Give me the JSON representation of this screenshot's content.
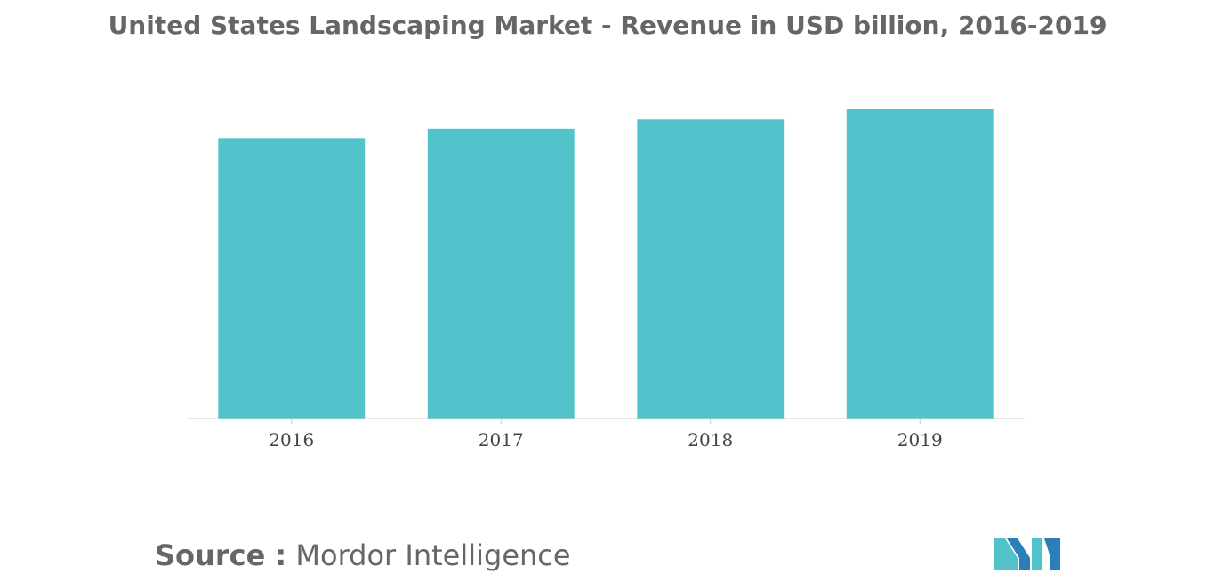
{
  "chart_data": {
    "type": "bar",
    "title": "United States Landscaping Market - Revenue in USD billion, 2016-2019",
    "categories": [
      "2016",
      "2017",
      "2018",
      "2019"
    ],
    "values": [
      81.0,
      83.7,
      86.4,
      89.3
    ],
    "ylim": [
      0,
      89.3
    ],
    "xlabel": "",
    "ylabel": "",
    "grid": false,
    "bar_color": "#52c3ca",
    "axis_color": "#cccccc"
  },
  "source": {
    "label": "Source :",
    "text": "Mordor Intelligence"
  },
  "logo": {
    "icon": "mordor-intelligence-logo",
    "colors": [
      "#2a7fb8",
      "#52c3ca"
    ]
  }
}
